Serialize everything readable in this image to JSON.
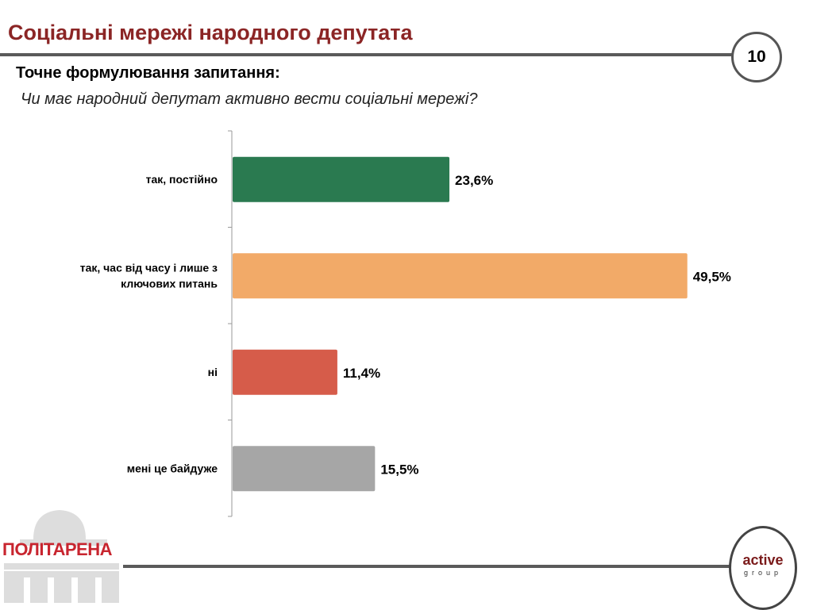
{
  "header": {
    "title": "Соціальні мережі народного депутата",
    "page_number": "10",
    "question_label": "Точне формулювання запитання:",
    "question": "Чи має народний депутат активно вести соціальні мережі?"
  },
  "footer": {
    "left_logo": "ПОЛІТАРЕНА",
    "right_logo_main": "active",
    "right_logo_sub": "group"
  },
  "chart_data": {
    "type": "bar",
    "orientation": "horizontal",
    "categories": [
      [
        "так, постійно"
      ],
      [
        "так, час від часу і лише з",
        "ключових питань"
      ],
      [
        "ні"
      ],
      [
        "мені це байдуже"
      ]
    ],
    "values": [
      23.6,
      49.5,
      11.4,
      15.5
    ],
    "data_labels": [
      "23,6%",
      "49,5%",
      "11,4%",
      "15,5%"
    ],
    "colors": [
      "#2a7a50",
      "#f2aa68",
      "#d65c4a",
      "#a6a6a6"
    ],
    "xlim": [
      0,
      55
    ],
    "grid": false
  }
}
